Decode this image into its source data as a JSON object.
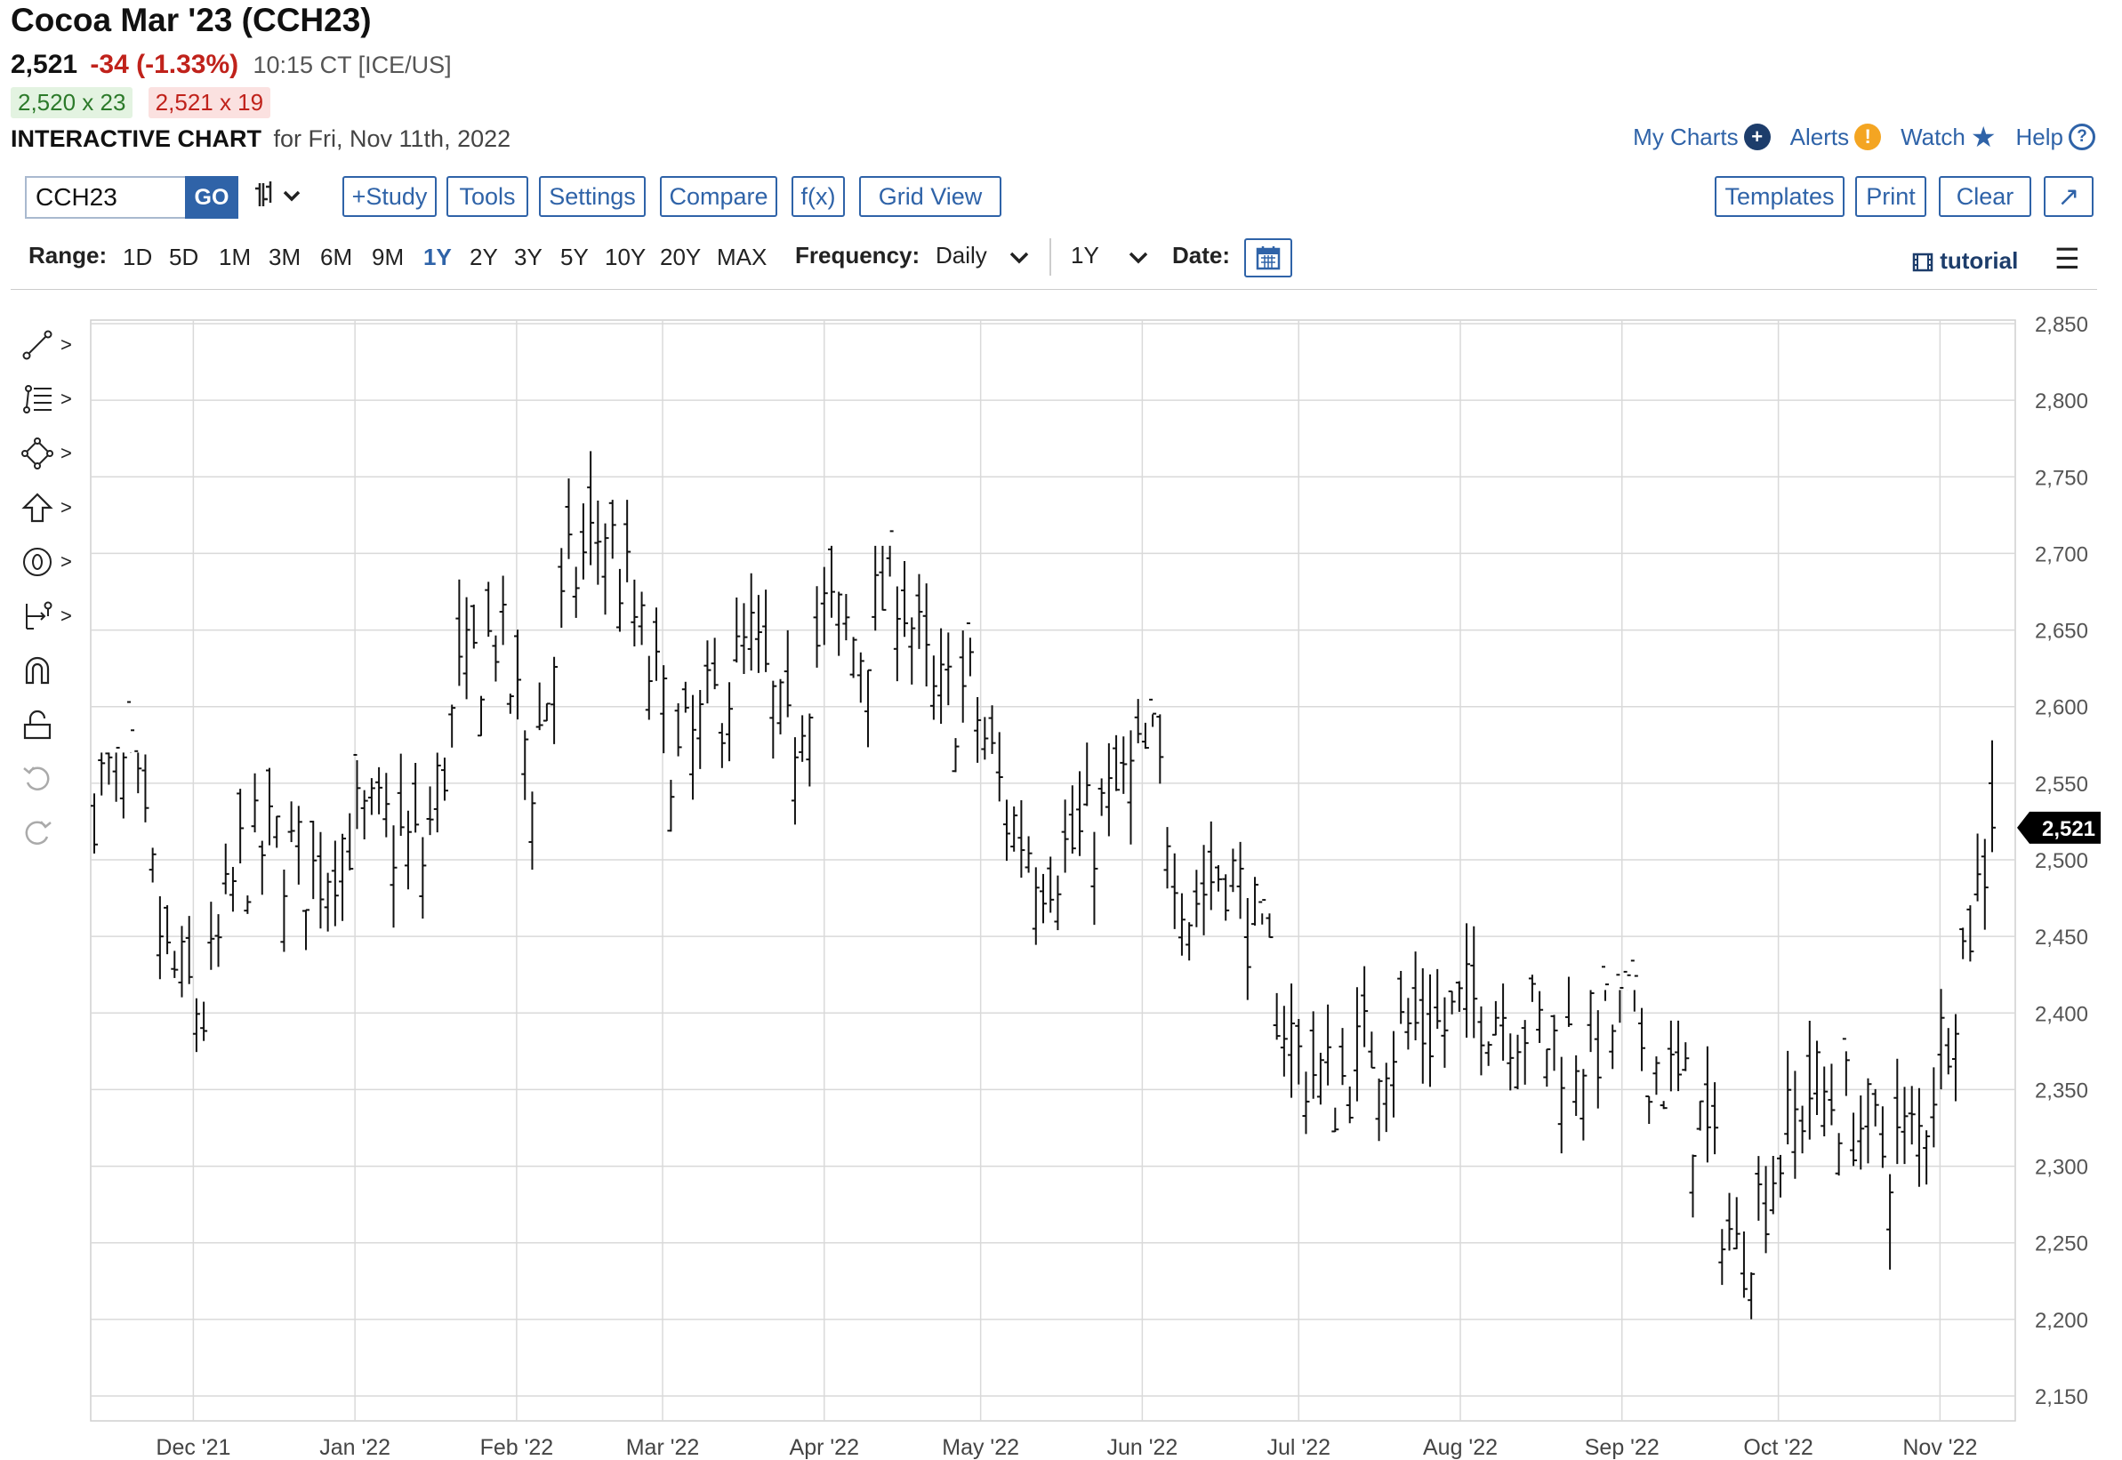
{
  "header": {
    "title": "Cocoa Mar '23 (CCH23)",
    "last": "2,521",
    "change": "-34 (-1.33%)",
    "time": "10:15 CT [ICE/US]",
    "bid": "2,520 x 23",
    "ask": "2,521 x 19",
    "chart_label": "INTERACTIVE CHART",
    "chart_for": "for Fri, Nov 11th, 2022"
  },
  "links": {
    "my_charts": "My Charts",
    "alerts": "Alerts",
    "watch": "Watch",
    "help": "Help"
  },
  "toolbar": {
    "symbol_value": "CCH23",
    "go": "GO",
    "study": "+Study",
    "tools": "Tools",
    "settings": "Settings",
    "compare": "Compare",
    "fx": "f(x)",
    "grid_view": "Grid View",
    "templates": "Templates",
    "print": "Print",
    "clear": "Clear"
  },
  "range": {
    "label": "Range:",
    "options": [
      "1D",
      "5D",
      "1M",
      "3M",
      "6M",
      "9M",
      "1Y",
      "2Y",
      "3Y",
      "5Y",
      "10Y",
      "20Y",
      "MAX"
    ],
    "active": "1Y",
    "frequency_label": "Frequency:",
    "frequency_value": "Daily",
    "period_value": "1Y",
    "date_label": "Date:",
    "tutorial": "tutorial"
  },
  "icons": {
    "side_tools": [
      "trendline-icon",
      "fibonacci-icon",
      "shapes-icon",
      "arrow-up-icon",
      "annotation-circle-icon",
      "measure-icon",
      "magnet-icon",
      "lock-icon",
      "undo-icon",
      "redo-icon"
    ]
  },
  "colors": {
    "accent": "#2f63a8",
    "down": "#c0221b",
    "up": "#2c7a2a",
    "bars": "#111111",
    "grid": "#d9d9d9"
  },
  "chart_data": {
    "type": "ohlc",
    "title": "",
    "xlabel": "",
    "ylabel": "",
    "ylim": [
      2150,
      2850
    ],
    "y_ticks": [
      "2,850",
      "2,800",
      "2,750",
      "2,700",
      "2,650",
      "2,600",
      "2,550",
      "2,500",
      "2,450",
      "2,400",
      "2,350",
      "2,300",
      "2,250",
      "2,200",
      "2,150"
    ],
    "x_ticks": [
      "Dec '21",
      "Jan '22",
      "Feb '22",
      "Mar '22",
      "Apr '22",
      "May '22",
      "Jun '22",
      "Jul '22",
      "Aug '22",
      "Sep '22",
      "Oct '22",
      "Nov '22"
    ],
    "last_price_label": "2,521",
    "last_price": 2521,
    "grid": true,
    "series": [
      {
        "x": [
          "2021-11-12",
          "2021-11-19",
          "2021-11-26",
          "2021-12-03",
          "2021-12-10",
          "2021-12-17",
          "2021-12-24",
          "2021-12-31",
          "2022-01-07",
          "2022-01-14",
          "2022-01-21",
          "2022-01-28",
          "2022-02-04",
          "2022-02-11",
          "2022-02-18",
          "2022-02-25",
          "2022-03-04",
          "2022-03-11",
          "2022-03-18",
          "2022-03-25",
          "2022-04-01",
          "2022-04-08",
          "2022-04-15",
          "2022-04-22",
          "2022-04-29",
          "2022-05-06",
          "2022-05-13",
          "2022-05-20",
          "2022-05-27",
          "2022-06-03",
          "2022-06-10",
          "2022-06-17",
          "2022-06-24",
          "2022-07-01",
          "2022-07-08",
          "2022-07-15",
          "2022-07-22",
          "2022-07-29",
          "2022-08-05",
          "2022-08-12",
          "2022-08-19",
          "2022-08-26",
          "2022-09-02",
          "2022-09-09",
          "2022-09-16",
          "2022-09-23",
          "2022-09-30",
          "2022-10-07",
          "2022-10-14",
          "2022-10-21",
          "2022-10-28",
          "2022-11-04",
          "2022-11-11"
        ],
        "close": [
          2545,
          2555,
          2430,
          2400,
          2500,
          2510,
          2490,
          2520,
          2520,
          2500,
          2610,
          2650,
          2560,
          2680,
          2720,
          2640,
          2560,
          2600,
          2640,
          2570,
          2660,
          2640,
          2690,
          2600,
          2610,
          2530,
          2500,
          2510,
          2540,
          2570,
          2470,
          2500,
          2440,
          2370,
          2350,
          2380,
          2390,
          2390,
          2410,
          2400,
          2380,
          2380,
          2400,
          2360,
          2330,
          2240,
          2300,
          2350,
          2340,
          2310,
          2320,
          2420,
          2521
        ],
        "high": [
          2565,
          2565,
          2450,
          2480,
          2515,
          2555,
          2530,
          2555,
          2560,
          2590,
          2680,
          2690,
          2640,
          2790,
          2730,
          2670,
          2640,
          2660,
          2690,
          2610,
          2700,
          2700,
          2690,
          2650,
          2640,
          2560,
          2560,
          2540,
          2600,
          2590,
          2520,
          2520,
          2460,
          2440,
          2420,
          2430,
          2450,
          2470,
          2450,
          2420,
          2420,
          2410,
          2410,
          2390,
          2380,
          2320,
          2400,
          2400,
          2370,
          2340,
          2390,
          2450,
          2578
        ]
      }
    ]
  }
}
